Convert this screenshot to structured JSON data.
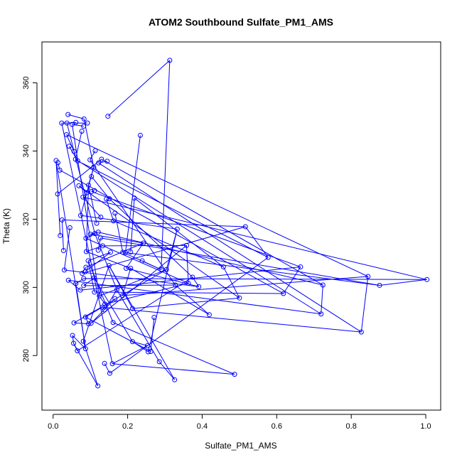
{
  "chart_data": {
    "type": "scatter",
    "title": "ATOM2 Southbound Sulfate_PM1_AMS",
    "xlabel": "Sulfate_PM1_AMS",
    "ylabel": "Theta (K)",
    "xlim": [
      -0.03,
      1.04
    ],
    "ylim": [
      264,
      372
    ],
    "xticks": [
      0.0,
      0.2,
      0.4,
      0.6,
      0.8,
      1.0
    ],
    "xtick_labels": [
      "0.0",
      "0.2",
      "0.4",
      "0.6",
      "0.8",
      "1.0"
    ],
    "yticks": [
      280,
      300,
      320,
      340,
      360
    ],
    "ytick_labels": [
      "280",
      "300",
      "320",
      "340",
      "360"
    ],
    "grid": false,
    "color": "#0000ff",
    "marker": "open-circle",
    "connected": true,
    "x": [
      0.313,
      0.147,
      0.083,
      0.04,
      0.037,
      0.061,
      0.023,
      0.092,
      0.051,
      0.082,
      0.13,
      0.012,
      0.024,
      0.028,
      0.008,
      0.019,
      0.03,
      0.045,
      0.018,
      0.013,
      0.036,
      0.056,
      0.066,
      0.043,
      0.06,
      0.077,
      0.099,
      0.113,
      0.122,
      0.145,
      0.151,
      0.103,
      0.069,
      0.091,
      0.074,
      0.109,
      0.08,
      0.128,
      0.103,
      0.111,
      0.095,
      0.117,
      0.088,
      0.112,
      0.1,
      0.121,
      0.133,
      0.089,
      0.187,
      0.166,
      0.162,
      0.143,
      0.127,
      0.121,
      0.194,
      0.234,
      0.218,
      0.208,
      0.242,
      0.196,
      0.171,
      0.138,
      0.139,
      0.124,
      0.102,
      0.166,
      0.186,
      0.208,
      0.239,
      0.29,
      0.304,
      0.333,
      0.358,
      0.363,
      0.374,
      0.391,
      0.457,
      0.5,
      0.516,
      0.577,
      0.618,
      0.664,
      0.719,
      0.724,
      0.827,
      0.845,
      0.876,
      1.003,
      0.419,
      0.328,
      0.271,
      0.262,
      0.253,
      0.159,
      0.152,
      0.138,
      0.12,
      0.081,
      0.095,
      0.056,
      0.055,
      0.065,
      0.052,
      0.087,
      0.11,
      0.082,
      0.132,
      0.087,
      0.161,
      0.487,
      0.326,
      0.285,
      0.255,
      0.213,
      0.213,
      0.15,
      0.088,
      0.078,
      0.073,
      0.041,
      0.094,
      0.111,
      0.082,
      0.061,
      0.154,
      0.086
    ],
    "y": [
      366.6,
      350.2,
      349.4,
      350.7,
      348.2,
      348.4,
      348.2,
      348.2,
      347.8,
      347.3,
      337.6,
      327.4,
      319.8,
      310.8,
      337.2,
      315.2,
      305.1,
      317.5,
      334.4,
      336.6,
      344.8,
      339.9,
      337.1,
      341.4,
      337.6,
      345.8,
      337.4,
      340.1,
      336.5,
      337.0,
      326.0,
      332.5,
      329.8,
      327.8,
      321.1,
      335.3,
      326.5,
      320.6,
      328.1,
      328.4,
      330.0,
      318.8,
      314.4,
      315.8,
      315.6,
      316.2,
      312.2,
      310.5,
      310.3,
      321.8,
      319.5,
      325.9,
      314.5,
      310.9,
      310.2,
      344.6,
      326.2,
      310.4,
      313.0,
      305.6,
      299.3,
      293.4,
      295.1,
      297.5,
      289.5,
      296.7,
      297.6,
      305.6,
      307.8,
      305.2,
      305.2,
      317.1,
      312.3,
      301.2,
      303.0,
      300.2,
      306.0,
      296.9,
      317.8,
      308.8,
      298.2,
      306.0,
      292.2,
      300.7,
      286.9,
      303.2,
      300.6,
      302.3,
      292.0,
      300.7,
      291.2,
      281.2,
      282.9,
      277.6,
      274.8,
      277.7,
      271.1,
      284.2,
      289.3,
      289.6,
      283.6,
      281.4,
      285.9,
      282.0,
      302.8,
      300.5,
      294.2,
      291.3,
      289.7,
      274.5,
      272.9,
      278.2,
      281.1,
      284.1,
      293.8,
      306.4,
      305.9,
      304.1,
      299.2,
      302.1,
      307.8,
      298.6,
      302.6,
      301.1,
      310.3,
      304.6
    ],
    "segments": [
      [
        0,
        1
      ],
      [
        2,
        3
      ],
      [
        4,
        5
      ],
      [
        6,
        7
      ],
      [
        8,
        9
      ],
      [
        10,
        11
      ],
      [
        12,
        13
      ],
      [
        14,
        15
      ],
      [
        16,
        17
      ],
      [
        18,
        19
      ],
      [
        20,
        21
      ],
      [
        22,
        23
      ],
      [
        24,
        25
      ],
      [
        26,
        27
      ],
      [
        28,
        29
      ],
      [
        30,
        31
      ],
      [
        32,
        33
      ],
      [
        34,
        35
      ],
      [
        36,
        37
      ],
      [
        38,
        39
      ],
      [
        40,
        41
      ],
      [
        42,
        43
      ],
      [
        44,
        45
      ],
      [
        46,
        47
      ],
      [
        48,
        49
      ],
      [
        50,
        51
      ],
      [
        52,
        53
      ],
      [
        54,
        55
      ],
      [
        56,
        57
      ],
      [
        58,
        59
      ],
      [
        60,
        61
      ],
      [
        62,
        63
      ],
      [
        64,
        65
      ],
      [
        66,
        67
      ],
      [
        68,
        69
      ],
      [
        70,
        71
      ],
      [
        72,
        73
      ],
      [
        74,
        75
      ],
      [
        76,
        77
      ],
      [
        78,
        79
      ],
      [
        80,
        81
      ],
      [
        82,
        83
      ],
      [
        84,
        85
      ],
      [
        86,
        87
      ],
      [
        88,
        89
      ],
      [
        90,
        91
      ],
      [
        92,
        93
      ],
      [
        94,
        95
      ],
      [
        96,
        97
      ],
      [
        98,
        99
      ],
      [
        100,
        101
      ],
      [
        102,
        103
      ],
      [
        104,
        105
      ],
      [
        106,
        107
      ],
      [
        108,
        109
      ],
      [
        110,
        111
      ],
      [
        112,
        113
      ],
      [
        114,
        115
      ],
      [
        116,
        117
      ],
      [
        118,
        119
      ],
      [
        120,
        121
      ],
      [
        122,
        123
      ],
      [
        124,
        125
      ],
      [
        2,
        35
      ],
      [
        35,
        40
      ],
      [
        40,
        47
      ],
      [
        47,
        67
      ],
      [
        67,
        88
      ],
      [
        8,
        63
      ],
      [
        63,
        70
      ],
      [
        70,
        99
      ],
      [
        14,
        103
      ],
      [
        103,
        123
      ],
      [
        4,
        43
      ],
      [
        43,
        60
      ],
      [
        60,
        111
      ],
      [
        6,
        93
      ],
      [
        93,
        109
      ],
      [
        24,
        82
      ],
      [
        82,
        119
      ],
      [
        20,
        85
      ],
      [
        85,
        66
      ],
      [
        30,
        74
      ],
      [
        74,
        101
      ],
      [
        36,
        87
      ],
      [
        87,
        122
      ],
      [
        38,
        81
      ],
      [
        81,
        118
      ],
      [
        26,
        89
      ],
      [
        89,
        105
      ],
      [
        32,
        77
      ],
      [
        77,
        114
      ],
      [
        22,
        79
      ],
      [
        79,
        94
      ],
      [
        28,
        84
      ],
      [
        84,
        106
      ],
      [
        34,
        71
      ],
      [
        71,
        112
      ],
      [
        12,
        78
      ],
      [
        78,
        117
      ],
      [
        18,
        80
      ],
      [
        80,
        121
      ],
      [
        10,
        83
      ],
      [
        83,
        45
      ],
      [
        44,
        58
      ],
      [
        58,
        116
      ],
      [
        46,
        72
      ],
      [
        72,
        64
      ],
      [
        48,
        69
      ],
      [
        69,
        0
      ],
      [
        50,
        76
      ],
      [
        76,
        56
      ],
      [
        52,
        86
      ],
      [
        86,
        54
      ],
      [
        16,
        75
      ],
      [
        75,
        59
      ],
      [
        42,
        73
      ],
      [
        73,
        62
      ],
      [
        96,
        100
      ],
      [
        100,
        102
      ],
      [
        98,
        107
      ],
      [
        107,
        91
      ],
      [
        92,
        113
      ],
      [
        113,
        104
      ],
      [
        108,
        120
      ],
      [
        120,
        124
      ],
      [
        110,
        115
      ],
      [
        115,
        97
      ]
    ]
  }
}
